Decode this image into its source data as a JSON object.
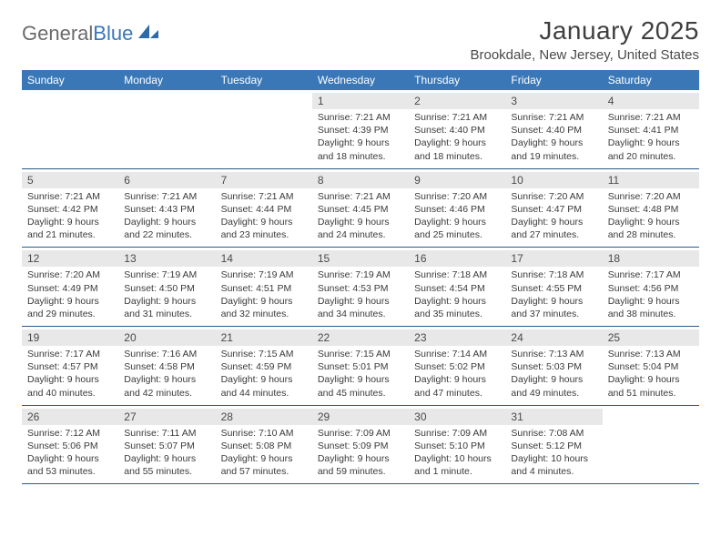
{
  "logo": {
    "word1": "General",
    "word2": "Blue"
  },
  "header": {
    "title": "January 2025",
    "location": "Brookdale, New Jersey, United States"
  },
  "colors": {
    "header_bg": "#3a77b7",
    "row_border": "#2b5b8a",
    "daynum_bg": "#e8e8e8"
  },
  "weekdays": [
    "Sunday",
    "Monday",
    "Tuesday",
    "Wednesday",
    "Thursday",
    "Friday",
    "Saturday"
  ],
  "weeks": [
    [
      {
        "day": "",
        "lines": [
          "",
          "",
          "",
          ""
        ]
      },
      {
        "day": "",
        "lines": [
          "",
          "",
          "",
          ""
        ]
      },
      {
        "day": "",
        "lines": [
          "",
          "",
          "",
          ""
        ]
      },
      {
        "day": "1",
        "lines": [
          "Sunrise: 7:21 AM",
          "Sunset: 4:39 PM",
          "Daylight: 9 hours",
          "and 18 minutes."
        ]
      },
      {
        "day": "2",
        "lines": [
          "Sunrise: 7:21 AM",
          "Sunset: 4:40 PM",
          "Daylight: 9 hours",
          "and 18 minutes."
        ]
      },
      {
        "day": "3",
        "lines": [
          "Sunrise: 7:21 AM",
          "Sunset: 4:40 PM",
          "Daylight: 9 hours",
          "and 19 minutes."
        ]
      },
      {
        "day": "4",
        "lines": [
          "Sunrise: 7:21 AM",
          "Sunset: 4:41 PM",
          "Daylight: 9 hours",
          "and 20 minutes."
        ]
      }
    ],
    [
      {
        "day": "5",
        "lines": [
          "Sunrise: 7:21 AM",
          "Sunset: 4:42 PM",
          "Daylight: 9 hours",
          "and 21 minutes."
        ]
      },
      {
        "day": "6",
        "lines": [
          "Sunrise: 7:21 AM",
          "Sunset: 4:43 PM",
          "Daylight: 9 hours",
          "and 22 minutes."
        ]
      },
      {
        "day": "7",
        "lines": [
          "Sunrise: 7:21 AM",
          "Sunset: 4:44 PM",
          "Daylight: 9 hours",
          "and 23 minutes."
        ]
      },
      {
        "day": "8",
        "lines": [
          "Sunrise: 7:21 AM",
          "Sunset: 4:45 PM",
          "Daylight: 9 hours",
          "and 24 minutes."
        ]
      },
      {
        "day": "9",
        "lines": [
          "Sunrise: 7:20 AM",
          "Sunset: 4:46 PM",
          "Daylight: 9 hours",
          "and 25 minutes."
        ]
      },
      {
        "day": "10",
        "lines": [
          "Sunrise: 7:20 AM",
          "Sunset: 4:47 PM",
          "Daylight: 9 hours",
          "and 27 minutes."
        ]
      },
      {
        "day": "11",
        "lines": [
          "Sunrise: 7:20 AM",
          "Sunset: 4:48 PM",
          "Daylight: 9 hours",
          "and 28 minutes."
        ]
      }
    ],
    [
      {
        "day": "12",
        "lines": [
          "Sunrise: 7:20 AM",
          "Sunset: 4:49 PM",
          "Daylight: 9 hours",
          "and 29 minutes."
        ]
      },
      {
        "day": "13",
        "lines": [
          "Sunrise: 7:19 AM",
          "Sunset: 4:50 PM",
          "Daylight: 9 hours",
          "and 31 minutes."
        ]
      },
      {
        "day": "14",
        "lines": [
          "Sunrise: 7:19 AM",
          "Sunset: 4:51 PM",
          "Daylight: 9 hours",
          "and 32 minutes."
        ]
      },
      {
        "day": "15",
        "lines": [
          "Sunrise: 7:19 AM",
          "Sunset: 4:53 PM",
          "Daylight: 9 hours",
          "and 34 minutes."
        ]
      },
      {
        "day": "16",
        "lines": [
          "Sunrise: 7:18 AM",
          "Sunset: 4:54 PM",
          "Daylight: 9 hours",
          "and 35 minutes."
        ]
      },
      {
        "day": "17",
        "lines": [
          "Sunrise: 7:18 AM",
          "Sunset: 4:55 PM",
          "Daylight: 9 hours",
          "and 37 minutes."
        ]
      },
      {
        "day": "18",
        "lines": [
          "Sunrise: 7:17 AM",
          "Sunset: 4:56 PM",
          "Daylight: 9 hours",
          "and 38 minutes."
        ]
      }
    ],
    [
      {
        "day": "19",
        "lines": [
          "Sunrise: 7:17 AM",
          "Sunset: 4:57 PM",
          "Daylight: 9 hours",
          "and 40 minutes."
        ]
      },
      {
        "day": "20",
        "lines": [
          "Sunrise: 7:16 AM",
          "Sunset: 4:58 PM",
          "Daylight: 9 hours",
          "and 42 minutes."
        ]
      },
      {
        "day": "21",
        "lines": [
          "Sunrise: 7:15 AM",
          "Sunset: 4:59 PM",
          "Daylight: 9 hours",
          "and 44 minutes."
        ]
      },
      {
        "day": "22",
        "lines": [
          "Sunrise: 7:15 AM",
          "Sunset: 5:01 PM",
          "Daylight: 9 hours",
          "and 45 minutes."
        ]
      },
      {
        "day": "23",
        "lines": [
          "Sunrise: 7:14 AM",
          "Sunset: 5:02 PM",
          "Daylight: 9 hours",
          "and 47 minutes."
        ]
      },
      {
        "day": "24",
        "lines": [
          "Sunrise: 7:13 AM",
          "Sunset: 5:03 PM",
          "Daylight: 9 hours",
          "and 49 minutes."
        ]
      },
      {
        "day": "25",
        "lines": [
          "Sunrise: 7:13 AM",
          "Sunset: 5:04 PM",
          "Daylight: 9 hours",
          "and 51 minutes."
        ]
      }
    ],
    [
      {
        "day": "26",
        "lines": [
          "Sunrise: 7:12 AM",
          "Sunset: 5:06 PM",
          "Daylight: 9 hours",
          "and 53 minutes."
        ]
      },
      {
        "day": "27",
        "lines": [
          "Sunrise: 7:11 AM",
          "Sunset: 5:07 PM",
          "Daylight: 9 hours",
          "and 55 minutes."
        ]
      },
      {
        "day": "28",
        "lines": [
          "Sunrise: 7:10 AM",
          "Sunset: 5:08 PM",
          "Daylight: 9 hours",
          "and 57 minutes."
        ]
      },
      {
        "day": "29",
        "lines": [
          "Sunrise: 7:09 AM",
          "Sunset: 5:09 PM",
          "Daylight: 9 hours",
          "and 59 minutes."
        ]
      },
      {
        "day": "30",
        "lines": [
          "Sunrise: 7:09 AM",
          "Sunset: 5:10 PM",
          "Daylight: 10 hours",
          "and 1 minute."
        ]
      },
      {
        "day": "31",
        "lines": [
          "Sunrise: 7:08 AM",
          "Sunset: 5:12 PM",
          "Daylight: 10 hours",
          "and 4 minutes."
        ]
      },
      {
        "day": "",
        "lines": [
          "",
          "",
          "",
          ""
        ]
      }
    ]
  ]
}
